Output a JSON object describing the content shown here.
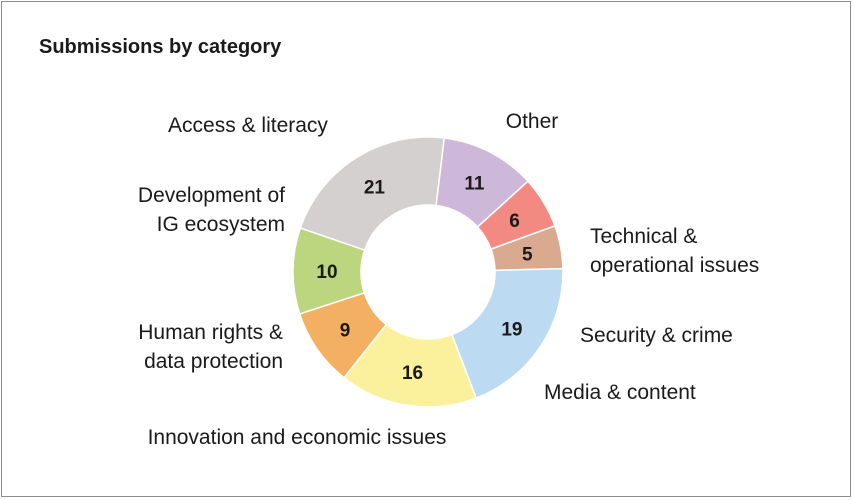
{
  "chart_data": {
    "type": "pie",
    "title": "Submissions by category",
    "categories": [
      "Other",
      "Technical & operational issues",
      "Security & crime",
      "Media & content",
      "Innovation and economic issues",
      "Human rights & data protection",
      "Development of IG ecosystem",
      "Access & literacy"
    ],
    "values": [
      21,
      11,
      6,
      5,
      19,
      16,
      9,
      10
    ],
    "label_lines": [
      [
        "Other"
      ],
      [
        "Technical &",
        "operational issues"
      ],
      [
        "Security & crime"
      ],
      [
        "Media & content"
      ],
      [
        "Innovation and economic issues"
      ],
      [
        "Human rights &",
        "data protection"
      ],
      [
        "Development of",
        "IG ecosystem"
      ],
      [
        "Access & literacy"
      ]
    ],
    "colors": [
      "#d3d0cf",
      "#cdb8da",
      "#f28a82",
      "#d9aa8f",
      "#bcdbf3",
      "#fbf19c",
      "#f4b062",
      "#bcd67f"
    ],
    "legend": "none"
  }
}
